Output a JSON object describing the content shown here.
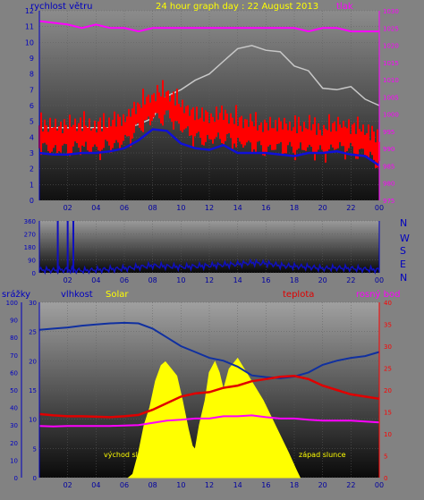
{
  "colors": {
    "wind": "#ff0000",
    "gust": "#c8c8c8",
    "avg_wind": "#1010d8",
    "pressure": "#ff00ff",
    "direction": "#1010c0",
    "humidity": "#1030a0",
    "solar": "#ffff00",
    "temperature": "#e00000",
    "dewpoint": "#ff00ff",
    "axis_left": "#0000c0",
    "axis_right_top": "#ff00ff",
    "axis_right_bottom": "#ff0000",
    "tick": "#0000a0"
  },
  "chart_data": [
    {
      "type": "line",
      "title": "24 hour graph day : 22 August 2013",
      "left_label": "rychlost větru",
      "right_label": "tlak",
      "x_ticks": [
        "02",
        "04",
        "06",
        "08",
        "10",
        "12",
        "14",
        "16",
        "18",
        "20",
        "22",
        "00"
      ],
      "y_left": {
        "range": [
          0,
          12
        ],
        "ticks": [
          "0",
          "1",
          "2",
          "3",
          "4",
          "5",
          "6",
          "7",
          "8",
          "9",
          "10",
          "11",
          "12"
        ]
      },
      "y_right": {
        "range": [
          975,
          1030
        ],
        "ticks": [
          "975",
          "980",
          "985",
          "990",
          "995",
          "1000",
          "1005",
          "1010",
          "1015",
          "1020",
          "1025",
          "1030"
        ]
      },
      "x_range_hours": [
        0,
        24
      ],
      "series": [
        {
          "key": "pressure",
          "axis": "right",
          "x": [
            0,
            2,
            3,
            4,
            5,
            6,
            7,
            8,
            9,
            10,
            11,
            12,
            13,
            14,
            15,
            16,
            17,
            18,
            19,
            20,
            21,
            22,
            23,
            24
          ],
          "y": [
            1027,
            1026,
            1025,
            1026,
            1025,
            1025,
            1024,
            1025,
            1025,
            1025,
            1025,
            1025,
            1025,
            1025,
            1025,
            1025,
            1025,
            1025,
            1024,
            1025,
            1025,
            1024,
            1024,
            1024
          ]
        },
        {
          "key": "gust",
          "axis": "left",
          "x": [
            0,
            2,
            4,
            6,
            7,
            8,
            8.5,
            9,
            10,
            11,
            12,
            13,
            14,
            15,
            16,
            17,
            18,
            19,
            20,
            21,
            22,
            23,
            23.5,
            24
          ],
          "y": [
            4.6,
            4.6,
            4.6,
            4.6,
            4.8,
            5.2,
            6.0,
            6.6,
            7.0,
            7.6,
            8.0,
            8.8,
            9.6,
            9.8,
            9.5,
            9.4,
            8.5,
            8.2,
            7.1,
            7.0,
            7.2,
            6.4,
            6.2,
            6.0
          ]
        },
        {
          "key": "wind",
          "axis": "left",
          "x": [
            0,
            1,
            2,
            3,
            4,
            5,
            6,
            7,
            8,
            9,
            10,
            11,
            12,
            13,
            14,
            15,
            16,
            17,
            18,
            19,
            20,
            21,
            22,
            23,
            24
          ],
          "y": [
            4.2,
            4.0,
            4.1,
            4.2,
            4.0,
            4.3,
            4.5,
            5.4,
            6.0,
            6.2,
            5.4,
            4.8,
            4.6,
            4.8,
            4.4,
            4.3,
            4.0,
            4.2,
            4.0,
            4.1,
            3.8,
            4.2,
            4.0,
            3.8,
            3.2
          ]
        },
        {
          "key": "avg_wind",
          "axis": "left",
          "x": [
            0,
            1,
            2,
            3,
            4,
            5,
            6,
            7,
            8,
            9,
            10,
            11,
            12,
            13,
            14,
            15,
            16,
            17,
            18,
            19,
            20,
            21,
            22,
            23,
            24
          ],
          "y": [
            3.0,
            2.9,
            2.9,
            3.0,
            3.0,
            3.1,
            3.3,
            3.8,
            4.5,
            4.4,
            3.6,
            3.3,
            3.2,
            3.5,
            3.0,
            3.0,
            3.0,
            2.9,
            2.8,
            3.0,
            3.0,
            3.1,
            2.9,
            2.8,
            2.2
          ]
        }
      ]
    },
    {
      "type": "line",
      "title": "",
      "right_labels": [
        "N",
        "W",
        "S",
        "E",
        "N"
      ],
      "y": {
        "range": [
          0,
          360
        ],
        "ticks": [
          "0",
          "90",
          "180",
          "270",
          "360"
        ]
      },
      "x_ticks": [
        "02",
        "04",
        "06",
        "08",
        "10",
        "12",
        "14",
        "16",
        "18",
        "20",
        "22",
        "00"
      ],
      "x_range_hours": [
        0,
        24
      ],
      "series": [
        {
          "key": "direction",
          "x": [
            0,
            1,
            2,
            3,
            4,
            5,
            6,
            7,
            8,
            9,
            10,
            11,
            12,
            13,
            14,
            15,
            16,
            17,
            18,
            19,
            20,
            21,
            22,
            23,
            24
          ],
          "y": [
            20,
            18,
            22,
            15,
            20,
            25,
            30,
            40,
            50,
            45,
            40,
            45,
            50,
            55,
            60,
            70,
            65,
            50,
            45,
            40,
            30,
            35,
            30,
            25,
            20
          ]
        }
      ],
      "spikes_hours": [
        1.3,
        2.0,
        2.4
      ]
    },
    {
      "type": "line",
      "title": "",
      "labels": {
        "rain": "srážky",
        "humidity": "vlhkost",
        "solar": "Solar",
        "temperature": "teplota",
        "dewpoint": "rosný bod"
      },
      "sunrise_label": "východ slunce",
      "sunset_label": "západ slunce",
      "y_rain": {
        "range": [
          0,
          100
        ],
        "ticks": [
          "0",
          "10",
          "20",
          "30",
          "40",
          "50",
          "60",
          "70",
          "80",
          "90",
          "100"
        ]
      },
      "y_humidity": {
        "range": [
          0,
          30
        ],
        "ticks": [
          "0",
          "5",
          "10",
          "15",
          "20",
          "25",
          "30"
        ]
      },
      "y_temp": {
        "range": [
          0,
          40
        ],
        "ticks": [
          "0",
          "5",
          "10",
          "15",
          "20",
          "25",
          "30",
          "35",
          "40"
        ]
      },
      "x_ticks": [
        "02",
        "04",
        "06",
        "08",
        "10",
        "12",
        "14",
        "16",
        "18",
        "20",
        "22",
        "00"
      ],
      "x_range_hours": [
        0,
        24
      ],
      "series": [
        {
          "key": "humidity",
          "axis": "humidity",
          "x": [
            0,
            1,
            2,
            3,
            4,
            5,
            6,
            7,
            8,
            9,
            10,
            11,
            12,
            13,
            14,
            15,
            16,
            17,
            18,
            19,
            20,
            21,
            22,
            23,
            24
          ],
          "y": [
            25.3,
            25.5,
            25.7,
            26.0,
            26.2,
            26.4,
            26.5,
            26.4,
            25.5,
            24.0,
            22.5,
            21.5,
            20.5,
            20.0,
            19.0,
            17.5,
            17.2,
            17.0,
            17.3,
            18.0,
            19.3,
            20.0,
            20.5,
            20.8,
            21.5
          ]
        },
        {
          "key": "temperature",
          "axis": "temp",
          "x": [
            0,
            1,
            2,
            3,
            4,
            5,
            6,
            7,
            8,
            9,
            10,
            11,
            12,
            13,
            14,
            15,
            16,
            17,
            18,
            19,
            20,
            21,
            22,
            23,
            24
          ],
          "y": [
            14.5,
            14.2,
            14.0,
            14.0,
            13.9,
            13.8,
            14.0,
            14.3,
            15.5,
            17.0,
            18.5,
            19.2,
            19.5,
            20.5,
            21.0,
            22.0,
            22.5,
            23.0,
            23.2,
            22.5,
            21.0,
            20.0,
            19.0,
            18.5,
            18.0
          ]
        },
        {
          "key": "dewpoint",
          "axis": "temp",
          "x": [
            0,
            1,
            2,
            3,
            4,
            5,
            6,
            7,
            8,
            9,
            10,
            11,
            12,
            13,
            14,
            15,
            16,
            17,
            18,
            19,
            20,
            21,
            22,
            23,
            24
          ],
          "y": [
            11.8,
            11.7,
            11.8,
            11.8,
            11.8,
            11.8,
            11.9,
            12.0,
            12.5,
            13.0,
            13.2,
            13.5,
            13.5,
            14.0,
            14.0,
            14.2,
            13.8,
            13.5,
            13.5,
            13.2,
            13.0,
            13.0,
            13.0,
            12.8,
            12.6
          ]
        },
        {
          "key": "solar",
          "axis": "rain",
          "x": [
            6.3,
            6.6,
            7.0,
            7.4,
            7.8,
            8.2,
            8.6,
            8.9,
            9.3,
            9.7,
            10.1,
            10.5,
            10.8,
            11.0,
            11.3,
            11.7,
            12.0,
            12.4,
            12.7,
            13.0,
            13.4,
            14.0,
            14.6,
            15.2,
            15.8,
            16.4,
            17.0,
            17.6,
            18.1,
            18.4
          ],
          "y": [
            0,
            2,
            14,
            30,
            40,
            55,
            64,
            66,
            62,
            58,
            44,
            28,
            18,
            16,
            30,
            44,
            60,
            66,
            60,
            50,
            62,
            68,
            60,
            52,
            44,
            34,
            24,
            14,
            5,
            0
          ]
        }
      ]
    }
  ]
}
